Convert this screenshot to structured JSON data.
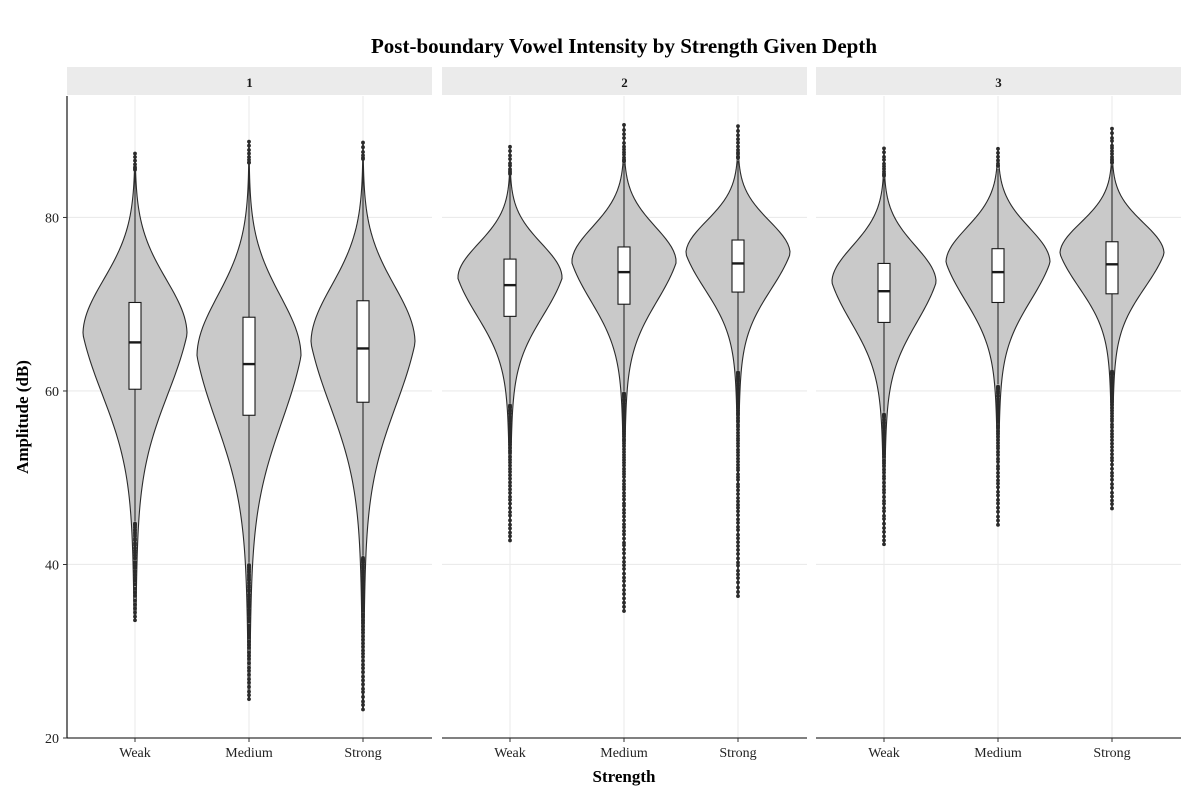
{
  "chart_data": {
    "type": "violin",
    "title": "Post-boundary Vowel Intensity by Strength Given Depth",
    "xlabel": "Strength",
    "ylabel": "Amplitude (dB)",
    "ylim": [
      20,
      94
    ],
    "y_ticks": [
      20,
      40,
      60,
      80
    ],
    "categories": [
      "Weak",
      "Medium",
      "Strong"
    ],
    "grid": true,
    "facets": [
      {
        "label": "1",
        "groups": [
          {
            "category": "Weak",
            "q1": 60.2,
            "median": 65.6,
            "q3": 70.2,
            "lower": 45.0,
            "upper": 85.2,
            "min": 33.5,
            "max": 87.4,
            "mode": 66.5,
            "spread": 6.0
          },
          {
            "category": "Medium",
            "q1": 57.2,
            "median": 63.1,
            "q3": 68.5,
            "lower": 40.2,
            "upper": 86.0,
            "min": 24.4,
            "max": 88.8,
            "mode": 64.0,
            "spread": 6.6
          },
          {
            "category": "Strong",
            "q1": 58.7,
            "median": 64.9,
            "q3": 70.4,
            "lower": 41.0,
            "upper": 86.5,
            "min": 23.3,
            "max": 88.6,
            "mode": 65.5,
            "spread": 6.3
          }
        ]
      },
      {
        "label": "2",
        "groups": [
          {
            "category": "Weak",
            "q1": 68.6,
            "median": 72.2,
            "q3": 75.2,
            "lower": 58.6,
            "upper": 84.8,
            "min": 42.7,
            "max": 88.1,
            "mode": 73.0,
            "spread": 3.8
          },
          {
            "category": "Medium",
            "q1": 70.0,
            "median": 73.7,
            "q3": 76.6,
            "lower": 60.0,
            "upper": 86.2,
            "min": 34.6,
            "max": 90.6,
            "mode": 74.8,
            "spread": 3.9
          },
          {
            "category": "Strong",
            "q1": 71.4,
            "median": 74.7,
            "q3": 77.4,
            "lower": 62.4,
            "upper": 86.5,
            "min": 36.4,
            "max": 90.5,
            "mode": 75.8,
            "spread": 3.6
          }
        ]
      },
      {
        "label": "3",
        "groups": [
          {
            "category": "Weak",
            "q1": 67.9,
            "median": 71.5,
            "q3": 74.7,
            "lower": 57.6,
            "upper": 84.5,
            "min": 42.3,
            "max": 88.0,
            "mode": 72.5,
            "spread": 4.0
          },
          {
            "category": "Medium",
            "q1": 70.2,
            "median": 73.7,
            "q3": 76.4,
            "lower": 60.8,
            "upper": 85.6,
            "min": 44.6,
            "max": 87.9,
            "mode": 74.8,
            "spread": 3.8
          },
          {
            "category": "Strong",
            "q1": 71.2,
            "median": 74.6,
            "q3": 77.2,
            "lower": 62.5,
            "upper": 86.0,
            "min": 46.4,
            "max": 90.2,
            "mode": 75.8,
            "spread": 3.4
          }
        ]
      }
    ]
  }
}
